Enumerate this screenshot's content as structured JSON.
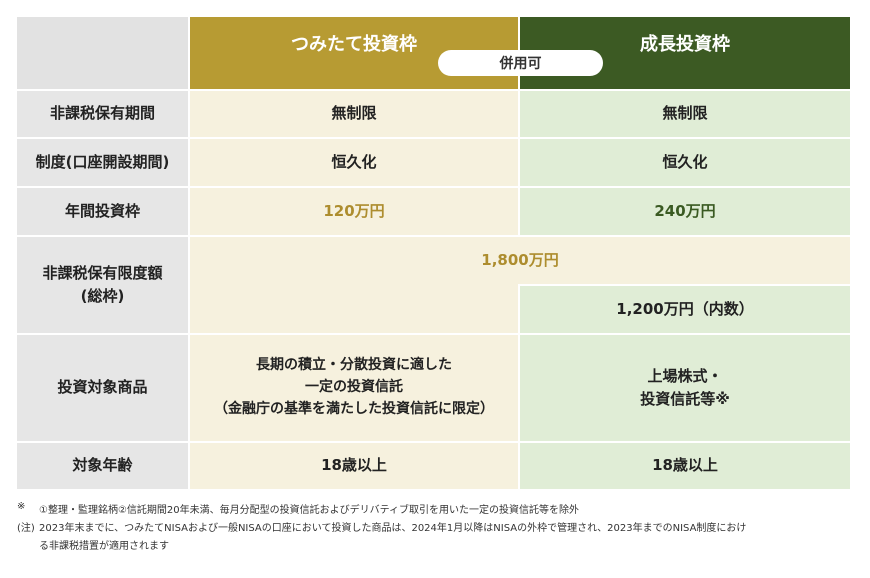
{
  "header": {
    "tsumitate": "つみたて投資枠",
    "growth": "成長投資枠",
    "combine_badge": "併用可"
  },
  "rows": {
    "holding_period": {
      "label": "非課税保有期間",
      "tsumitate": "無制限",
      "growth": "無制限"
    },
    "system": {
      "label": "制度(口座開設期間)",
      "tsumitate": "恒久化",
      "growth": "恒久化"
    },
    "annual_limit": {
      "label": "年間投資枠",
      "tsumitate": "120万円",
      "growth": "240万円"
    },
    "total_limit": {
      "label_line1": "非課税保有限度額",
      "label_line2": "(総枠)",
      "combined": "1,800万円",
      "growth": "1,200万円（内数）"
    },
    "products": {
      "label": "投資対象商品",
      "tsumitate_line1": "長期の積立・分散投資に適した",
      "tsumitate_line2": "一定の投資信託",
      "tsumitate_line3": "（金融庁の基準を満たした投資信託に限定）",
      "growth_line1": "上場株式・",
      "growth_line2": "投資信託等※"
    },
    "age": {
      "label": "対象年齢",
      "tsumitate": "18歳以上",
      "growth": "18歳以上"
    }
  },
  "notes": {
    "note1_mark": "※",
    "note1_text": "①整理・監理銘柄②信託期間20年未満、毎月分配型の投資信託およびデリバティブ取引を用いた一定の投資信託等を除外",
    "note2_mark": "(注)",
    "note2_line1": "2023年末までに、つみたてNISAおよび一般NISAの口座において投資した商品は、2024年1月以降はNISAの外枠で管理され、2023年までのNISA制度におけ",
    "note2_line2": "る非課税措置が適用されます"
  },
  "colors": {
    "tsumitate_header": "#b79b33",
    "growth_header": "#3c5a23",
    "tsumitate_cell": "#f6f1de",
    "growth_cell": "#e0edd6",
    "label_cell": "#e6e6e6"
  }
}
